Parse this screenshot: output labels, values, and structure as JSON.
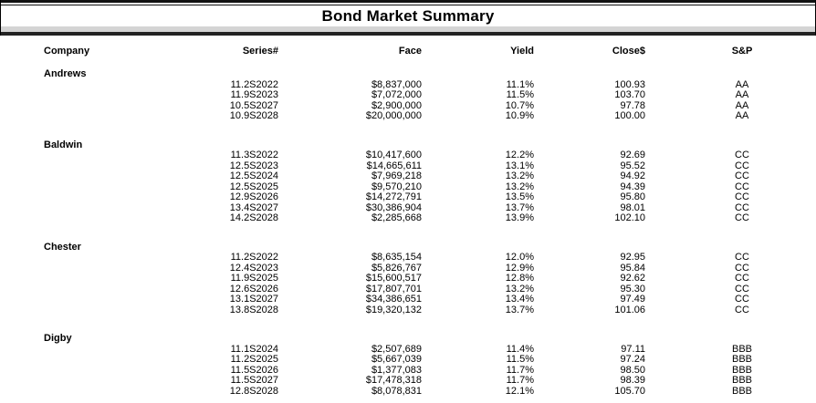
{
  "title": "Bond Market Summary",
  "columns": {
    "company": "Company",
    "series": "Series#",
    "face": "Face",
    "yield": "Yield",
    "close": "Close$",
    "sp": "S&P"
  },
  "colors": {
    "rule_black": "#111111",
    "band_gray": "#d4d4d4",
    "text": "#000000",
    "background": "#ffffff"
  },
  "companies": [
    {
      "name": "Andrews",
      "bonds": [
        {
          "series": "11.2S2022",
          "face": "$8,837,000",
          "yield": "11.1%",
          "close": "100.93",
          "sp": "AA"
        },
        {
          "series": "11.9S2023",
          "face": "$7,072,000",
          "yield": "11.5%",
          "close": "103.70",
          "sp": "AA"
        },
        {
          "series": "10.5S2027",
          "face": "$2,900,000",
          "yield": "10.7%",
          "close": "97.78",
          "sp": "AA"
        },
        {
          "series": "10.9S2028",
          "face": "$20,000,000",
          "yield": "10.9%",
          "close": "100.00",
          "sp": "AA"
        }
      ]
    },
    {
      "name": "Baldwin",
      "bonds": [
        {
          "series": "11.3S2022",
          "face": "$10,417,600",
          "yield": "12.2%",
          "close": "92.69",
          "sp": "CC"
        },
        {
          "series": "12.5S2023",
          "face": "$14,665,611",
          "yield": "13.1%",
          "close": "95.52",
          "sp": "CC"
        },
        {
          "series": "12.5S2024",
          "face": "$7,969,218",
          "yield": "13.2%",
          "close": "94.92",
          "sp": "CC"
        },
        {
          "series": "12.5S2025",
          "face": "$9,570,210",
          "yield": "13.2%",
          "close": "94.39",
          "sp": "CC"
        },
        {
          "series": "12.9S2026",
          "face": "$14,272,791",
          "yield": "13.5%",
          "close": "95.80",
          "sp": "CC"
        },
        {
          "series": "13.4S2027",
          "face": "$30,386,904",
          "yield": "13.7%",
          "close": "98.01",
          "sp": "CC"
        },
        {
          "series": "14.2S2028",
          "face": "$2,285,668",
          "yield": "13.9%",
          "close": "102.10",
          "sp": "CC"
        }
      ]
    },
    {
      "name": "Chester",
      "bonds": [
        {
          "series": "11.2S2022",
          "face": "$8,635,154",
          "yield": "12.0%",
          "close": "92.95",
          "sp": "CC"
        },
        {
          "series": "12.4S2023",
          "face": "$5,826,767",
          "yield": "12.9%",
          "close": "95.84",
          "sp": "CC"
        },
        {
          "series": "11.9S2025",
          "face": "$15,600,517",
          "yield": "12.8%",
          "close": "92.62",
          "sp": "CC"
        },
        {
          "series": "12.6S2026",
          "face": "$17,807,701",
          "yield": "13.2%",
          "close": "95.30",
          "sp": "CC"
        },
        {
          "series": "13.1S2027",
          "face": "$34,386,651",
          "yield": "13.4%",
          "close": "97.49",
          "sp": "CC"
        },
        {
          "series": "13.8S2028",
          "face": "$19,320,132",
          "yield": "13.7%",
          "close": "101.06",
          "sp": "CC"
        }
      ]
    },
    {
      "name": "Digby",
      "bonds": [
        {
          "series": "11.1S2024",
          "face": "$2,507,689",
          "yield": "11.4%",
          "close": "97.11",
          "sp": "BBB"
        },
        {
          "series": "11.2S2025",
          "face": "$5,667,039",
          "yield": "11.5%",
          "close": "97.24",
          "sp": "BBB"
        },
        {
          "series": "11.5S2026",
          "face": "$1,377,083",
          "yield": "11.7%",
          "close": "98.50",
          "sp": "BBB"
        },
        {
          "series": "11.5S2027",
          "face": "$17,478,318",
          "yield": "11.7%",
          "close": "98.39",
          "sp": "BBB"
        },
        {
          "series": "12.8S2028",
          "face": "$8,078,831",
          "yield": "12.1%",
          "close": "105.70",
          "sp": "BBB"
        }
      ]
    }
  ]
}
